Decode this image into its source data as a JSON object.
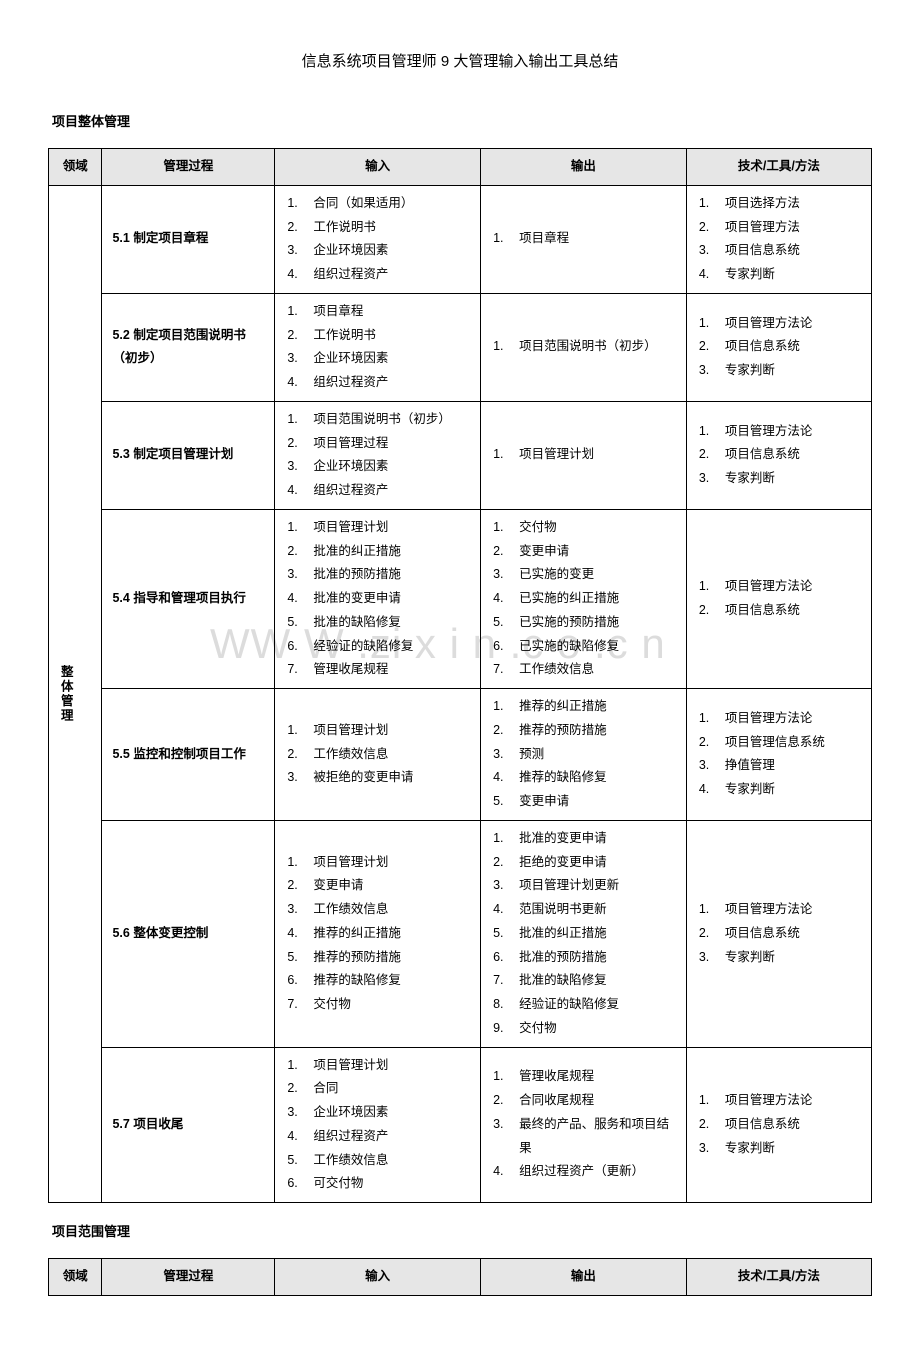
{
  "doc": {
    "title": "信息系统项目管理师 9 大管理输入输出工具总结",
    "watermark": "WW W .zi  x  i n .c  o .c n"
  },
  "section1": {
    "heading": "项目整体管理",
    "headers": [
      "领域",
      "管理过程",
      "输入",
      "输出",
      "技术/工具/方法"
    ],
    "domain_label": "整体管理",
    "rows": [
      {
        "process": "5.1 制定项目章程",
        "inputs": [
          "合同（如果适用）",
          "工作说明书",
          "企业环境因素",
          "组织过程资产"
        ],
        "outputs": [
          "项目章程"
        ],
        "tools": [
          "项目选择方法",
          "项目管理方法",
          "项目信息系统",
          "专家判断"
        ]
      },
      {
        "process": "5.2 制定项目范围说明书（初步）",
        "inputs": [
          "项目章程",
          "工作说明书",
          "企业环境因素",
          "组织过程资产"
        ],
        "outputs": [
          "项目范围说明书（初步）"
        ],
        "tools": [
          "项目管理方法论",
          "项目信息系统",
          "专家判断"
        ]
      },
      {
        "process": "5.3 制定项目管理计划",
        "inputs": [
          "项目范围说明书（初步）",
          "项目管理过程",
          "企业环境因素",
          "组织过程资产"
        ],
        "outputs": [
          "项目管理计划"
        ],
        "tools": [
          "项目管理方法论",
          "项目信息系统",
          "专家判断"
        ]
      },
      {
        "process": "5.4 指导和管理项目执行",
        "inputs": [
          "项目管理计划",
          "批准的纠正措施",
          "批准的预防措施",
          "批准的变更申请",
          "批准的缺陷修复",
          "经验证的缺陷修复",
          "管理收尾规程"
        ],
        "outputs": [
          "交付物",
          "变更申请",
          "已实施的变更",
          "已实施的纠正措施",
          "已实施的预防措施",
          "已实施的缺陷修复",
          "工作绩效信息"
        ],
        "tools": [
          "项目管理方法论",
          "项目信息系统"
        ]
      },
      {
        "process": "5.5 监控和控制项目工作",
        "inputs": [
          "项目管理计划",
          "工作绩效信息",
          "被拒绝的变更申请"
        ],
        "outputs": [
          "推荐的纠正措施",
          "推荐的预防措施",
          "预测",
          "推荐的缺陷修复",
          "变更申请"
        ],
        "tools": [
          "项目管理方法论",
          "项目管理信息系统",
          "挣值管理",
          "专家判断"
        ]
      },
      {
        "process": "5.6 整体变更控制",
        "inputs": [
          "项目管理计划",
          "变更申请",
          "工作绩效信息",
          "推荐的纠正措施",
          "推荐的预防措施",
          "推荐的缺陷修复",
          "交付物"
        ],
        "outputs": [
          "批准的变更申请",
          "拒绝的变更申请",
          "项目管理计划更新",
          "范围说明书更新",
          "批准的纠正措施",
          "批准的预防措施",
          "批准的缺陷修复",
          "经验证的缺陷修复",
          "交付物"
        ],
        "tools": [
          "项目管理方法论",
          "项目信息系统",
          "专家判断"
        ]
      },
      {
        "process": "5.7 项目收尾",
        "inputs": [
          "项目管理计划",
          "合同",
          "企业环境因素",
          "组织过程资产",
          "工作绩效信息",
          "可交付物"
        ],
        "outputs": [
          "管理收尾规程",
          "合同收尾规程",
          "最终的产品、服务和项目结果",
          "组织过程资产（更新）"
        ],
        "tools": [
          "项目管理方法论",
          "项目信息系统",
          "专家判断"
        ]
      }
    ]
  },
  "section2": {
    "heading": "项目范围管理",
    "headers": [
      "领域",
      "管理过程",
      "输入",
      "输出",
      "技术/工具/方法"
    ]
  }
}
